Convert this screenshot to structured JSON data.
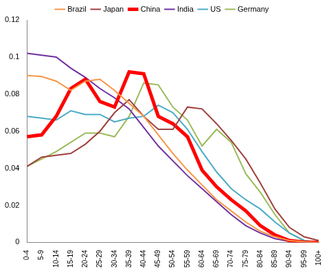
{
  "chart_data": {
    "type": "line",
    "categories": [
      "0-4",
      "5-9",
      "10-14",
      "15-19",
      "20-24",
      "25-29",
      "30-34",
      "35-39",
      "40-44",
      "45-49",
      "50-54",
      "55-59",
      "60-64",
      "65-69",
      "70-74",
      "75-79",
      "80-84",
      "85-89",
      "90-94",
      "95-99",
      "100+"
    ],
    "series": [
      {
        "name": "Brazil",
        "color": "#f79646",
        "line_style": "solid",
        "values": [
          0.09,
          0.0895,
          0.087,
          0.082,
          0.087,
          0.088,
          0.082,
          0.075,
          0.068,
          0.058,
          0.048,
          0.039,
          0.031,
          0.023,
          0.017,
          0.011,
          0.006,
          0.003,
          0.001,
          0.0003,
          0
        ]
      },
      {
        "name": "Japan",
        "color": "#a0403d",
        "line_style": "solid",
        "values": [
          0.041,
          0.046,
          0.047,
          0.048,
          0.053,
          0.06,
          0.07,
          0.077,
          0.068,
          0.061,
          0.061,
          0.073,
          0.072,
          0.064,
          0.055,
          0.045,
          0.032,
          0.018,
          0.008,
          0.003,
          0.001
        ]
      },
      {
        "name": "China",
        "color": "#ff0000",
        "line_style": "bold",
        "values": [
          0.057,
          0.058,
          0.068,
          0.083,
          0.088,
          0.076,
          0.073,
          0.092,
          0.091,
          0.068,
          0.064,
          0.057,
          0.039,
          0.03,
          0.023,
          0.017,
          0.009,
          0.004,
          0.001,
          0.0002,
          0
        ]
      },
      {
        "name": "India",
        "color": "#7030a0",
        "line_style": "solid",
        "values": [
          0.102,
          0.101,
          0.1,
          0.094,
          0.089,
          0.083,
          0.078,
          0.072,
          0.062,
          0.052,
          0.044,
          0.036,
          0.029,
          0.022,
          0.015,
          0.009,
          0.005,
          0.002,
          0.0005,
          0.0001,
          0
        ]
      },
      {
        "name": "US",
        "color": "#4bacc6",
        "line_style": "solid",
        "values": [
          0.068,
          0.067,
          0.066,
          0.071,
          0.069,
          0.069,
          0.065,
          0.067,
          0.068,
          0.074,
          0.07,
          0.061,
          0.049,
          0.038,
          0.029,
          0.023,
          0.018,
          0.011,
          0.005,
          0.001,
          0
        ]
      },
      {
        "name": "Germany",
        "color": "#9bbb59",
        "line_style": "solid",
        "values": [
          0.041,
          0.045,
          0.049,
          0.054,
          0.059,
          0.059,
          0.057,
          0.068,
          0.086,
          0.085,
          0.073,
          0.066,
          0.052,
          0.061,
          0.054,
          0.037,
          0.027,
          0.015,
          0.005,
          0.001,
          0
        ]
      }
    ],
    "ylim": [
      0,
      0.12
    ],
    "yticks": [
      0,
      0.02,
      0.04,
      0.06,
      0.08,
      0.1,
      0.12
    ],
    "grid": false,
    "legend": "top",
    "marker": "none"
  }
}
